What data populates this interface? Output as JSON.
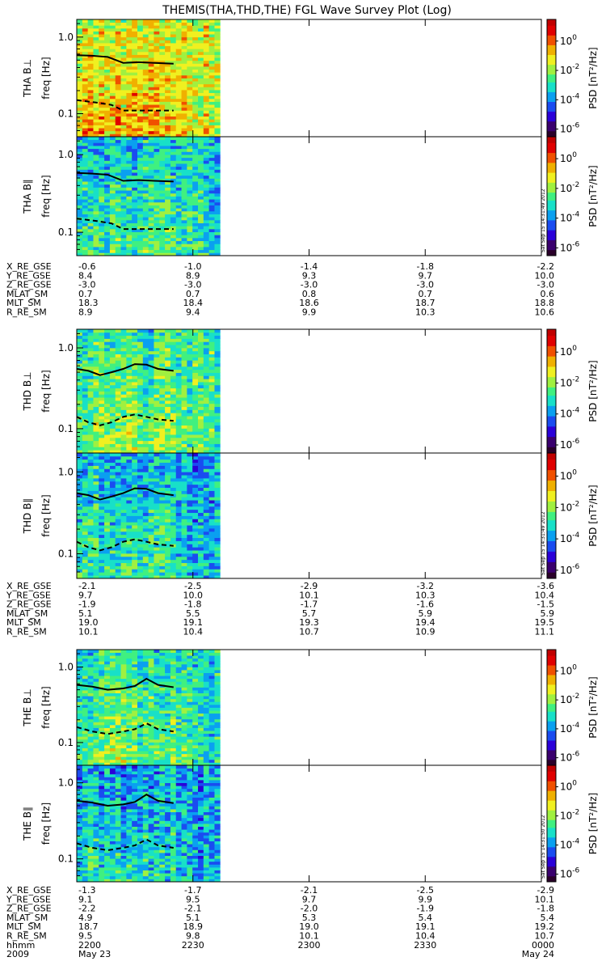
{
  "title": "THEMIS(THA,THD,THE) FGL Wave Survey Plot (Log)",
  "stamps": [
    "Sat Sep 15 14:31:49 2012",
    "Sat Sep 15 14:31:50 2012"
  ],
  "colors": {
    "line": "#000000",
    "frame": "#000000",
    "colormap": [
      "#2a002a",
      "#3a006e",
      "#2a00d8",
      "#1a4cf0",
      "#0aa0f0",
      "#18e0c8",
      "#40f080",
      "#a0f040",
      "#f0f020",
      "#f0b000",
      "#f05000",
      "#e00000",
      "#c00000"
    ]
  },
  "probes": [
    {
      "id": "THA",
      "panels": [
        {
          "label": "THA B⊥",
          "ylabel": "freq [Hz]",
          "cbar_label": "PSD [nT²/Hz]",
          "seed": 11,
          "bias": 0.62
        },
        {
          "label": "THA B∥",
          "ylabel": "freq [Hz]",
          "cbar_label": "PSD [nT²/Hz]",
          "seed": 23,
          "bias": 0.38
        }
      ],
      "ephem": {
        "rows": [
          {
            "name": "X_RE_GSE",
            "vals": [
              "-0.6",
              "-1.0",
              "-1.4",
              "-1.8",
              "-2.2"
            ]
          },
          {
            "name": "Y_RE_GSE",
            "vals": [
              "8.4",
              "8.9",
              "9.3",
              "9.7",
              "10.0"
            ]
          },
          {
            "name": "Z_RE_GSE",
            "vals": [
              "-3.0",
              "-3.0",
              "-3.0",
              "-3.0",
              "-3.0"
            ]
          },
          {
            "name": "MLAT_SM",
            "vals": [
              "0.7",
              "0.7",
              "0.8",
              "0.7",
              "0.6"
            ]
          },
          {
            "name": "MLT_SM",
            "vals": [
              "18.3",
              "18.4",
              "18.6",
              "18.7",
              "18.8"
            ]
          },
          {
            "name": "R_RE_SM",
            "vals": [
              "8.9",
              "9.4",
              "9.9",
              "10.3",
              "10.6"
            ]
          }
        ]
      }
    },
    {
      "id": "THD",
      "panels": [
        {
          "label": "THD B⊥",
          "ylabel": "freq [Hz]",
          "cbar_label": "PSD [nT²/Hz]",
          "seed": 37,
          "bias": 0.46
        },
        {
          "label": "THD B∥",
          "ylabel": "freq [Hz]",
          "cbar_label": "PSD [nT²/Hz]",
          "seed": 41,
          "bias": 0.36
        }
      ],
      "ephem": {
        "rows": [
          {
            "name": "X_RE_GSE",
            "vals": [
              "-2.1",
              "-2.5",
              "-2.9",
              "-3.2",
              "-3.6"
            ]
          },
          {
            "name": "Y_RE_GSE",
            "vals": [
              "9.7",
              "10.0",
              "10.1",
              "10.3",
              "10.4"
            ]
          },
          {
            "name": "Z_RE_GSE",
            "vals": [
              "-1.9",
              "-1.8",
              "-1.7",
              "-1.6",
              "-1.5"
            ]
          },
          {
            "name": "MLAT_SM",
            "vals": [
              "5.1",
              "5.5",
              "5.7",
              "5.9",
              "5.9"
            ]
          },
          {
            "name": "MLT_SM",
            "vals": [
              "19.0",
              "19.1",
              "19.3",
              "19.4",
              "19.5"
            ]
          },
          {
            "name": "R_RE_SM",
            "vals": [
              "10.1",
              "10.4",
              "10.7",
              "10.9",
              "11.1"
            ]
          }
        ]
      }
    },
    {
      "id": "THE",
      "panels": [
        {
          "label": "THE B⊥",
          "ylabel": "freq [Hz]",
          "cbar_label": "PSD [nT²/Hz]",
          "seed": 53,
          "bias": 0.44
        },
        {
          "label": "THE B∥",
          "ylabel": "freq [Hz]",
          "cbar_label": "PSD [nT²/Hz]",
          "seed": 67,
          "bias": 0.33
        }
      ],
      "ephem": {
        "rows": [
          {
            "name": "X_RE_GSE",
            "vals": [
              "-1.3",
              "-1.7",
              "-2.1",
              "-2.5",
              "-2.9"
            ]
          },
          {
            "name": "Y_RE_GSE",
            "vals": [
              "9.1",
              "9.5",
              "9.7",
              "9.9",
              "10.1"
            ]
          },
          {
            "name": "Z_RE_GSE",
            "vals": [
              "-2.2",
              "-2.1",
              "-2.0",
              "-1.9",
              "-1.8"
            ]
          },
          {
            "name": "MLAT_SM",
            "vals": [
              "4.9",
              "5.1",
              "5.3",
              "5.4",
              "5.4"
            ]
          },
          {
            "name": "MLT_SM",
            "vals": [
              "18.7",
              "18.9",
              "19.0",
              "19.1",
              "19.2"
            ]
          },
          {
            "name": "R_RE_SM",
            "vals": [
              "9.5",
              "9.8",
              "10.1",
              "10.4",
              "10.7"
            ]
          },
          {
            "name": "hhmm",
            "vals": [
              "2200",
              "2230",
              "2300",
              "2330",
              "0000"
            ]
          }
        ],
        "date_row": {
          "left_year": "2009",
          "left_date": "May 23",
          "right_date": "May 24"
        }
      }
    }
  ],
  "chart_data": {
    "type": "heatmap",
    "title": "THEMIS(THA,THD,THE) FGL Wave Survey Plot (Log)",
    "x_ticks": [
      "2200",
      "2230",
      "2300",
      "2330",
      "0000"
    ],
    "x_range": [
      "2009-05-23 22:00",
      "2009-05-24 00:00"
    ],
    "data_coverage_end": "2009-05-23 22:37",
    "y_scale": "log",
    "y_ticks": [
      {
        "value": 0.1,
        "label": "0.1"
      },
      {
        "value": 1.0,
        "label": "1.0"
      }
    ],
    "y_range_hz": [
      0.05,
      1.7
    ],
    "colorbar": {
      "scale": "log",
      "range": [
        3e-07,
        30
      ],
      "ticks": [
        {
          "base": "10",
          "exp": "0"
        },
        {
          "base": "10",
          "exp": "-2"
        },
        {
          "base": "10",
          "exp": "-4"
        },
        {
          "base": "10",
          "exp": "-6"
        }
      ],
      "tick_values": [
        1,
        0.01,
        0.0001,
        1e-06
      ]
    },
    "panels": [
      {
        "name": "THA B⊥",
        "solid": [
          [
            0,
            0.58
          ],
          [
            4,
            0.57
          ],
          [
            8,
            0.55
          ],
          [
            12,
            0.46
          ],
          [
            16,
            0.47
          ],
          [
            20,
            0.46
          ],
          [
            25,
            0.45
          ]
        ],
        "dashed": [
          [
            0,
            0.15
          ],
          [
            5,
            0.14
          ],
          [
            9,
            0.13
          ],
          [
            12,
            0.11
          ],
          [
            16,
            0.11
          ],
          [
            20,
            0.11
          ],
          [
            25,
            0.11
          ]
        ]
      },
      {
        "name": "THA B∥",
        "solid": [
          [
            0,
            0.58
          ],
          [
            4,
            0.57
          ],
          [
            8,
            0.55
          ],
          [
            12,
            0.46
          ],
          [
            16,
            0.47
          ],
          [
            20,
            0.46
          ],
          [
            25,
            0.45
          ]
        ],
        "dashed": [
          [
            0,
            0.15
          ],
          [
            5,
            0.14
          ],
          [
            9,
            0.13
          ],
          [
            12,
            0.11
          ],
          [
            16,
            0.11
          ],
          [
            20,
            0.11
          ],
          [
            25,
            0.11
          ]
        ]
      },
      {
        "name": "THD B⊥",
        "solid": [
          [
            0,
            0.55
          ],
          [
            3,
            0.52
          ],
          [
            6,
            0.46
          ],
          [
            9,
            0.5
          ],
          [
            12,
            0.55
          ],
          [
            15,
            0.63
          ],
          [
            18,
            0.62
          ],
          [
            21,
            0.55
          ],
          [
            25,
            0.52
          ]
        ],
        "dashed": [
          [
            0,
            0.14
          ],
          [
            3,
            0.12
          ],
          [
            6,
            0.11
          ],
          [
            9,
            0.12
          ],
          [
            12,
            0.14
          ],
          [
            15,
            0.15
          ],
          [
            18,
            0.14
          ],
          [
            21,
            0.13
          ],
          [
            25,
            0.125
          ]
        ]
      },
      {
        "name": "THD B∥",
        "solid": [
          [
            0,
            0.55
          ],
          [
            3,
            0.52
          ],
          [
            6,
            0.46
          ],
          [
            9,
            0.5
          ],
          [
            12,
            0.55
          ],
          [
            15,
            0.63
          ],
          [
            18,
            0.62
          ],
          [
            21,
            0.55
          ],
          [
            25,
            0.52
          ]
        ],
        "dashed": [
          [
            0,
            0.14
          ],
          [
            3,
            0.12
          ],
          [
            6,
            0.11
          ],
          [
            9,
            0.12
          ],
          [
            12,
            0.14
          ],
          [
            15,
            0.15
          ],
          [
            18,
            0.14
          ],
          [
            21,
            0.13
          ],
          [
            25,
            0.125
          ]
        ]
      },
      {
        "name": "THE B⊥",
        "solid": [
          [
            0,
            0.58
          ],
          [
            4,
            0.55
          ],
          [
            8,
            0.5
          ],
          [
            12,
            0.52
          ],
          [
            15,
            0.56
          ],
          [
            18,
            0.7
          ],
          [
            21,
            0.58
          ],
          [
            25,
            0.54
          ]
        ],
        "dashed": [
          [
            0,
            0.16
          ],
          [
            4,
            0.14
          ],
          [
            8,
            0.13
          ],
          [
            12,
            0.14
          ],
          [
            15,
            0.15
          ],
          [
            18,
            0.18
          ],
          [
            21,
            0.15
          ],
          [
            25,
            0.14
          ]
        ]
      },
      {
        "name": "THE B∥",
        "solid": [
          [
            0,
            0.58
          ],
          [
            4,
            0.55
          ],
          [
            8,
            0.5
          ],
          [
            12,
            0.52
          ],
          [
            15,
            0.56
          ],
          [
            18,
            0.7
          ],
          [
            21,
            0.58
          ],
          [
            25,
            0.54
          ]
        ],
        "dashed": [
          [
            0,
            0.16
          ],
          [
            4,
            0.14
          ],
          [
            8,
            0.13
          ],
          [
            12,
            0.14
          ],
          [
            15,
            0.15
          ],
          [
            18,
            0.18
          ],
          [
            21,
            0.15
          ],
          [
            25,
            0.14
          ]
        ]
      }
    ]
  }
}
